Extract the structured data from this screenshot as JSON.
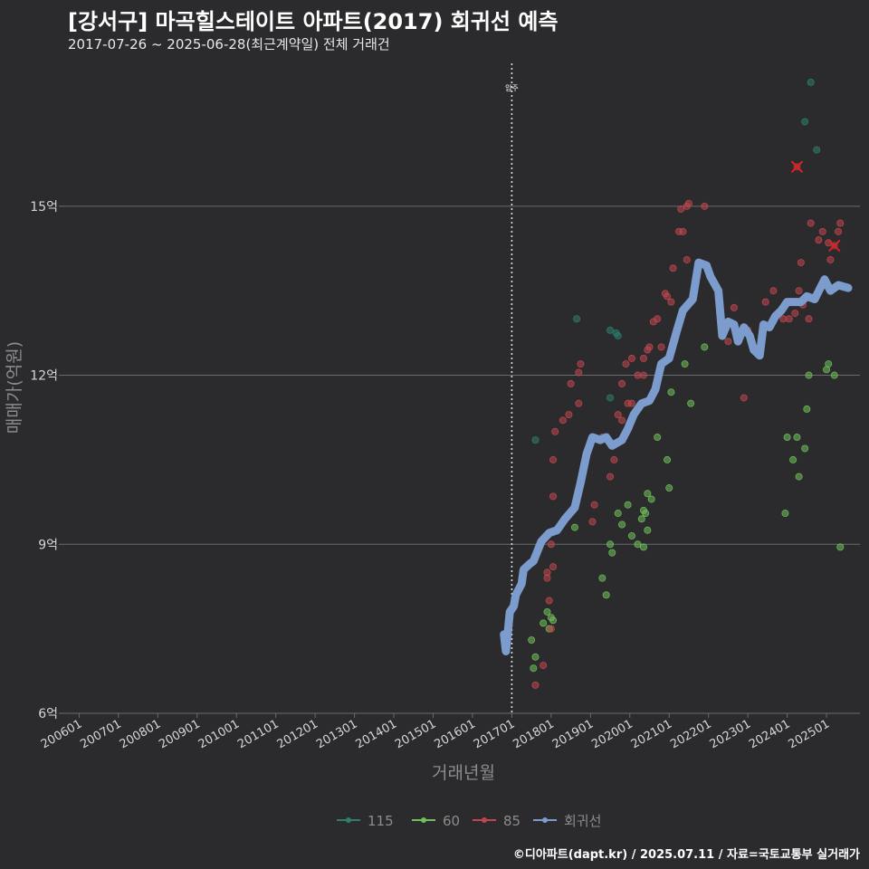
{
  "header": {
    "title": "[강서구] 마곡힐스테이트 아파트(2017) 회귀선 예측",
    "subtitle": "2017-07-26 ~ 2025-06-28(최근계약일) 전체 거래건"
  },
  "footer": {
    "credit": "©디아파트(dapt.kr) / 2025.07.11 / 자료=국토교통부 실거래가"
  },
  "colors": {
    "background": "#2b2b2d",
    "grid": "#6b6b6b",
    "s115": "#2e7d6e",
    "s60": "#6fbf5a",
    "s85": "#c0474f",
    "regression": "#7b9ccc",
    "highlight": "#e02020"
  },
  "chart_data": {
    "type": "scatter",
    "xlabel": "거래년월",
    "ylabel": "매매가(억원)",
    "xlim": [
      2005.6,
      2025.85
    ],
    "ylim": [
      6,
      17.6
    ],
    "yticks": [
      {
        "v": 6,
        "label": "6억"
      },
      {
        "v": 9,
        "label": "9억"
      },
      {
        "v": 12,
        "label": "12억"
      },
      {
        "v": 15,
        "label": "15억"
      }
    ],
    "xticks": [
      {
        "v": 2006,
        "label": "200601"
      },
      {
        "v": 2007,
        "label": "200701"
      },
      {
        "v": 2008,
        "label": "200801"
      },
      {
        "v": 2009,
        "label": "200901"
      },
      {
        "v": 2010,
        "label": "201001"
      },
      {
        "v": 2011,
        "label": "201101"
      },
      {
        "v": 2012,
        "label": "201201"
      },
      {
        "v": 2013,
        "label": "201301"
      },
      {
        "v": 2014,
        "label": "201401"
      },
      {
        "v": 2015,
        "label": "201501"
      },
      {
        "v": 2016,
        "label": "201601"
      },
      {
        "v": 2017,
        "label": "201701"
      },
      {
        "v": 2018,
        "label": "201801"
      },
      {
        "v": 2019,
        "label": "201901"
      },
      {
        "v": 2020,
        "label": "202001"
      },
      {
        "v": 2021,
        "label": "202101"
      },
      {
        "v": 2022,
        "label": "202201"
      },
      {
        "v": 2023,
        "label": "202301"
      },
      {
        "v": 2024,
        "label": "202401"
      },
      {
        "v": 2025,
        "label": "202501"
      }
    ],
    "annotation": {
      "x": 2017.0,
      "label": "입주"
    },
    "legend": {
      "position": "bottom",
      "items": [
        "115",
        "60",
        "85",
        "회귀선"
      ]
    },
    "series": [
      {
        "name": "115",
        "color": "#2e7d6e",
        "points": [
          [
            2017.6,
            10.85
          ],
          [
            2018.65,
            13.0
          ],
          [
            2019.5,
            12.8
          ],
          [
            2019.65,
            12.75
          ],
          [
            2019.7,
            12.7
          ],
          [
            2019.5,
            11.6
          ],
          [
            2024.45,
            16.5
          ],
          [
            2024.6,
            17.2
          ],
          [
            2024.75,
            16.0
          ]
        ]
      },
      {
        "name": "60",
        "color": "#6fbf5a",
        "points": [
          [
            2017.5,
            7.3
          ],
          [
            2017.55,
            6.8
          ],
          [
            2017.6,
            7.0
          ],
          [
            2017.8,
            7.6
          ],
          [
            2017.9,
            7.8
          ],
          [
            2017.95,
            7.5
          ],
          [
            2018.0,
            7.7
          ],
          [
            2018.05,
            7.65
          ],
          [
            2018.6,
            9.3
          ],
          [
            2019.3,
            8.4
          ],
          [
            2019.4,
            8.1
          ],
          [
            2019.5,
            9.0
          ],
          [
            2019.55,
            8.85
          ],
          [
            2019.7,
            9.55
          ],
          [
            2019.8,
            9.35
          ],
          [
            2019.95,
            9.7
          ],
          [
            2020.05,
            9.15
          ],
          [
            2020.2,
            9.0
          ],
          [
            2020.3,
            9.45
          ],
          [
            2020.35,
            9.6
          ],
          [
            2020.4,
            9.55
          ],
          [
            2020.35,
            8.95
          ],
          [
            2020.45,
            9.25
          ],
          [
            2020.45,
            9.9
          ],
          [
            2020.55,
            9.8
          ],
          [
            2020.7,
            10.9
          ],
          [
            2020.95,
            10.5
          ],
          [
            2021.0,
            10.0
          ],
          [
            2021.05,
            11.7
          ],
          [
            2021.4,
            12.2
          ],
          [
            2021.55,
            11.5
          ],
          [
            2021.9,
            12.5
          ],
          [
            2023.95,
            9.55
          ],
          [
            2024.0,
            10.9
          ],
          [
            2024.15,
            10.5
          ],
          [
            2024.25,
            10.9
          ],
          [
            2024.3,
            10.2
          ],
          [
            2024.45,
            10.7
          ],
          [
            2024.5,
            11.4
          ],
          [
            2024.55,
            12.0
          ],
          [
            2025.0,
            12.1
          ],
          [
            2025.05,
            12.2
          ],
          [
            2025.2,
            12.0
          ],
          [
            2025.35,
            8.95
          ]
        ]
      },
      {
        "name": "85",
        "color": "#c0474f",
        "points": [
          [
            2017.6,
            6.5
          ],
          [
            2017.8,
            6.85
          ],
          [
            2018.0,
            7.5
          ],
          [
            2017.95,
            8.0
          ],
          [
            2018.05,
            8.6
          ],
          [
            2017.9,
            8.4
          ],
          [
            2017.9,
            8.5
          ],
          [
            2018.0,
            9.0
          ],
          [
            2018.05,
            9.85
          ],
          [
            2018.05,
            10.5
          ],
          [
            2018.1,
            11.0
          ],
          [
            2018.3,
            11.2
          ],
          [
            2018.45,
            11.3
          ],
          [
            2018.5,
            11.85
          ],
          [
            2018.7,
            11.5
          ],
          [
            2018.7,
            12.05
          ],
          [
            2018.75,
            12.2
          ],
          [
            2019.05,
            9.4
          ],
          [
            2019.1,
            9.7
          ],
          [
            2019.3,
            10.9
          ],
          [
            2019.5,
            10.2
          ],
          [
            2019.6,
            10.5
          ],
          [
            2019.7,
            11.3
          ],
          [
            2019.8,
            11.2
          ],
          [
            2019.8,
            11.85
          ],
          [
            2019.9,
            12.2
          ],
          [
            2019.95,
            11.5
          ],
          [
            2020.05,
            11.5
          ],
          [
            2020.05,
            12.3
          ],
          [
            2020.2,
            12.0
          ],
          [
            2020.35,
            12.0
          ],
          [
            2020.35,
            12.3
          ],
          [
            2020.45,
            12.45
          ],
          [
            2020.5,
            12.5
          ],
          [
            2020.6,
            12.95
          ],
          [
            2020.7,
            13.0
          ],
          [
            2020.8,
            12.5
          ],
          [
            2020.9,
            13.45
          ],
          [
            2020.95,
            13.4
          ],
          [
            2021.05,
            13.3
          ],
          [
            2021.1,
            13.9
          ],
          [
            2021.25,
            14.55
          ],
          [
            2021.35,
            14.55
          ],
          [
            2021.45,
            14.05
          ],
          [
            2021.3,
            14.95
          ],
          [
            2021.45,
            15.0
          ],
          [
            2021.5,
            15.05
          ],
          [
            2021.9,
            15.0
          ],
          [
            2022.5,
            12.6
          ],
          [
            2022.65,
            13.2
          ],
          [
            2022.9,
            11.6
          ],
          [
            2023.0,
            12.8
          ],
          [
            2023.3,
            12.4
          ],
          [
            2023.45,
            13.3
          ],
          [
            2023.65,
            13.5
          ],
          [
            2023.9,
            13.0
          ],
          [
            2024.05,
            13.0
          ],
          [
            2024.2,
            13.1
          ],
          [
            2024.3,
            13.5
          ],
          [
            2024.35,
            14.0
          ],
          [
            2024.4,
            13.25
          ],
          [
            2024.55,
            13.0
          ],
          [
            2024.6,
            14.7
          ],
          [
            2024.8,
            14.4
          ],
          [
            2024.9,
            14.55
          ],
          [
            2025.05,
            14.35
          ],
          [
            2025.1,
            14.05
          ],
          [
            2025.3,
            14.55
          ],
          [
            2025.35,
            14.7
          ]
        ]
      }
    ],
    "highlights": [
      [
        2024.25,
        15.7
      ],
      [
        2025.2,
        14.3
      ]
    ],
    "regression": {
      "name": "회귀선",
      "points": [
        [
          2016.8,
          7.4
        ],
        [
          2016.85,
          7.1
        ],
        [
          2016.95,
          7.8
        ],
        [
          2017.05,
          7.9
        ],
        [
          2017.1,
          8.1
        ],
        [
          2017.25,
          8.3
        ],
        [
          2017.3,
          8.55
        ],
        [
          2017.45,
          8.65
        ],
        [
          2017.55,
          8.7
        ],
        [
          2017.75,
          9.05
        ],
        [
          2017.95,
          9.2
        ],
        [
          2018.15,
          9.25
        ],
        [
          2018.35,
          9.45
        ],
        [
          2018.6,
          9.65
        ],
        [
          2018.75,
          10.1
        ],
        [
          2018.9,
          10.6
        ],
        [
          2019.05,
          10.9
        ],
        [
          2019.25,
          10.85
        ],
        [
          2019.4,
          10.9
        ],
        [
          2019.55,
          10.75
        ],
        [
          2019.8,
          10.85
        ],
        [
          2019.95,
          11.05
        ],
        [
          2020.1,
          11.3
        ],
        [
          2020.3,
          11.5
        ],
        [
          2020.5,
          11.55
        ],
        [
          2020.65,
          11.75
        ],
        [
          2020.8,
          12.2
        ],
        [
          2021.0,
          12.3
        ],
        [
          2021.2,
          12.8
        ],
        [
          2021.35,
          13.15
        ],
        [
          2021.6,
          13.35
        ],
        [
          2021.75,
          14.0
        ],
        [
          2021.95,
          13.95
        ],
        [
          2022.05,
          13.75
        ],
        [
          2022.25,
          13.5
        ],
        [
          2022.35,
          12.7
        ],
        [
          2022.5,
          12.95
        ],
        [
          2022.65,
          12.9
        ],
        [
          2022.75,
          12.6
        ],
        [
          2022.9,
          12.85
        ],
        [
          2023.05,
          12.7
        ],
        [
          2023.15,
          12.45
        ],
        [
          2023.3,
          12.35
        ],
        [
          2023.4,
          12.9
        ],
        [
          2023.55,
          12.85
        ],
        [
          2023.7,
          13.05
        ],
        [
          2023.85,
          13.15
        ],
        [
          2024.0,
          13.3
        ],
        [
          2024.15,
          13.3
        ],
        [
          2024.35,
          13.3
        ],
        [
          2024.5,
          13.4
        ],
        [
          2024.7,
          13.35
        ],
        [
          2024.95,
          13.7
        ],
        [
          2025.1,
          13.5
        ],
        [
          2025.3,
          13.6
        ],
        [
          2025.55,
          13.55
        ]
      ]
    }
  }
}
